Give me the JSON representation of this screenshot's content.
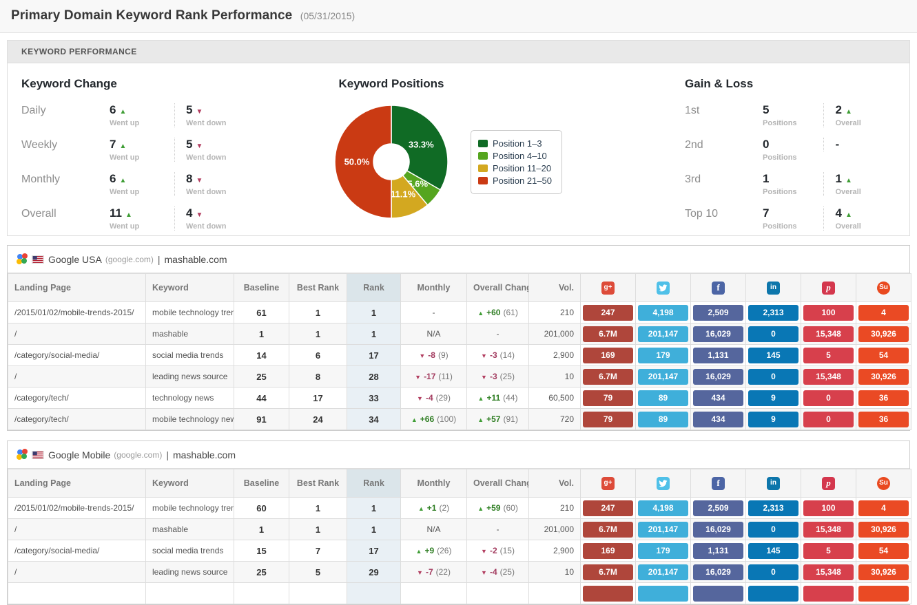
{
  "page": {
    "title": "Primary Domain Keyword Rank Performance",
    "date": "(05/31/2015)"
  },
  "panel": {
    "header": "KEYWORD PERFORMANCE",
    "keyword_change": {
      "title": "Keyword Change",
      "up_label": "Went up",
      "down_label": "Went down",
      "rows": [
        {
          "label": "Daily",
          "up": "6",
          "down": "5"
        },
        {
          "label": "Weekly",
          "up": "7",
          "down": "5"
        },
        {
          "label": "Monthly",
          "up": "6",
          "down": "8"
        },
        {
          "label": "Overall",
          "up": "11",
          "down": "4"
        }
      ]
    },
    "gain_loss": {
      "title": "Gain & Loss",
      "rows": [
        {
          "label": "1st",
          "positions": "5",
          "positions_label": "Positions",
          "overall": "2",
          "overall_arrow": "up",
          "overall_label": "Overall"
        },
        {
          "label": "2nd",
          "positions": "0",
          "positions_label": "Positions",
          "overall": "-",
          "overall_arrow": "",
          "overall_label": ""
        },
        {
          "label": "3rd",
          "positions": "1",
          "positions_label": "Positions",
          "overall": "1",
          "overall_arrow": "up",
          "overall_label": "Overall"
        },
        {
          "label": "Top 10",
          "positions": "7",
          "positions_label": "Positions",
          "overall": "4",
          "overall_arrow": "up",
          "overall_label": "Overall"
        }
      ]
    }
  },
  "chart_data": {
    "type": "pie",
    "donut": true,
    "title": "Keyword Positions",
    "labels": [
      "Position 1–3",
      "Position 4–10",
      "Position 11–20",
      "Position 21–50"
    ],
    "values": [
      33.3,
      5.6,
      11.1,
      50.0
    ],
    "value_labels": [
      "33.3%",
      "5.6%",
      "11.1%",
      "50.0%"
    ],
    "colors": [
      "#106b25",
      "#55a51f",
      "#d3a820",
      "#ca3a13"
    ],
    "legend_position": "right",
    "start_angle_deg": 0,
    "direction": "clockwise"
  },
  "status_colors": {
    "up_green": "#3f9d35",
    "down_red": "#b23e60"
  },
  "social_columns": [
    {
      "name": "google-plus",
      "glyph": "g+",
      "icon_bg": "#dd4b39",
      "badge_color": "#af463b"
    },
    {
      "name": "twitter",
      "glyph": "bird",
      "icon_bg": "#4fc0e8",
      "badge_color": "#3fafda"
    },
    {
      "name": "facebook",
      "glyph": "f",
      "icon_bg": "#4c65a5",
      "badge_color": "#55669d"
    },
    {
      "name": "linkedin",
      "glyph": "in",
      "icon_bg": "#0d76ab",
      "badge_color": "#0977b5"
    },
    {
      "name": "pinterest",
      "glyph": "p",
      "icon_bg": "#d4374d",
      "badge_color": "#d7404c"
    },
    {
      "name": "stumbleupon",
      "glyph": "Su",
      "icon_bg": "#e9491f",
      "badge_color": "#ea4a24"
    }
  ],
  "table_columns": {
    "landing_page": "Landing Page",
    "keyword": "Keyword",
    "baseline": "Baseline",
    "best_rank": "Best Rank",
    "rank": "Rank",
    "monthly": "Monthly",
    "overall_change": "Overall Change",
    "vol": "Vol."
  },
  "tables": [
    {
      "engine": "Google USA",
      "domain": "(google.com)",
      "separator": "|",
      "site": "mashable.com",
      "icon": "google-icon",
      "rows": [
        {
          "landing_page": "/2015/01/02/mobile-trends-2015/",
          "keyword": "mobile technology trends",
          "baseline": "61",
          "best_rank": "1",
          "rank": "1",
          "monthly": {
            "dir": "",
            "text": "-"
          },
          "overall": {
            "dir": "up",
            "text": "+60",
            "paren": "(61)"
          },
          "vol": "210",
          "social": [
            "247",
            "4,198",
            "2,509",
            "2,313",
            "100",
            "4"
          ]
        },
        {
          "landing_page": "/",
          "keyword": "mashable",
          "baseline": "1",
          "best_rank": "1",
          "rank": "1",
          "monthly": {
            "dir": "",
            "text": "N/A"
          },
          "overall": {
            "dir": "",
            "text": "-"
          },
          "vol": "201,000",
          "social": [
            "6.7M",
            "201,147",
            "16,029",
            "0",
            "15,348",
            "30,926"
          ]
        },
        {
          "landing_page": "/category/social-media/",
          "keyword": "social media trends",
          "baseline": "14",
          "best_rank": "6",
          "rank": "17",
          "monthly": {
            "dir": "down",
            "text": "-8",
            "paren": "(9)"
          },
          "overall": {
            "dir": "down",
            "text": "-3",
            "paren": "(14)"
          },
          "vol": "2,900",
          "social": [
            "169",
            "179",
            "1,131",
            "145",
            "5",
            "54"
          ]
        },
        {
          "landing_page": "/",
          "keyword": "leading news source",
          "baseline": "25",
          "best_rank": "8",
          "rank": "28",
          "monthly": {
            "dir": "down",
            "text": "-17",
            "paren": "(11)"
          },
          "overall": {
            "dir": "down",
            "text": "-3",
            "paren": "(25)"
          },
          "vol": "10",
          "social": [
            "6.7M",
            "201,147",
            "16,029",
            "0",
            "15,348",
            "30,926"
          ]
        },
        {
          "landing_page": "/category/tech/",
          "keyword": "technology news",
          "baseline": "44",
          "best_rank": "17",
          "rank": "33",
          "monthly": {
            "dir": "down",
            "text": "-4",
            "paren": "(29)"
          },
          "overall": {
            "dir": "up",
            "text": "+11",
            "paren": "(44)"
          },
          "vol": "60,500",
          "social": [
            "79",
            "89",
            "434",
            "9",
            "0",
            "36"
          ]
        },
        {
          "landing_page": "/category/tech/",
          "keyword": "mobile technology news",
          "baseline": "91",
          "best_rank": "24",
          "rank": "34",
          "monthly": {
            "dir": "up",
            "text": "+66",
            "paren": "(100)"
          },
          "overall": {
            "dir": "up",
            "text": "+57",
            "paren": "(91)"
          },
          "vol": "720",
          "social": [
            "79",
            "89",
            "434",
            "9",
            "0",
            "36"
          ]
        }
      ]
    },
    {
      "engine": "Google Mobile",
      "domain": "(google.com)",
      "separator": "|",
      "site": "mashable.com",
      "icon": "google-mobile-icon",
      "rows": [
        {
          "landing_page": "/2015/01/02/mobile-trends-2015/",
          "keyword": "mobile technology trends",
          "baseline": "60",
          "best_rank": "1",
          "rank": "1",
          "monthly": {
            "dir": "up",
            "text": "+1",
            "paren": "(2)"
          },
          "overall": {
            "dir": "up",
            "text": "+59",
            "paren": "(60)"
          },
          "vol": "210",
          "social": [
            "247",
            "4,198",
            "2,509",
            "2,313",
            "100",
            "4"
          ]
        },
        {
          "landing_page": "/",
          "keyword": "mashable",
          "baseline": "1",
          "best_rank": "1",
          "rank": "1",
          "monthly": {
            "dir": "",
            "text": "N/A"
          },
          "overall": {
            "dir": "",
            "text": "-"
          },
          "vol": "201,000",
          "social": [
            "6.7M",
            "201,147",
            "16,029",
            "0",
            "15,348",
            "30,926"
          ]
        },
        {
          "landing_page": "/category/social-media/",
          "keyword": "social media trends",
          "baseline": "15",
          "best_rank": "7",
          "rank": "17",
          "monthly": {
            "dir": "up",
            "text": "+9",
            "paren": "(26)"
          },
          "overall": {
            "dir": "down",
            "text": "-2",
            "paren": "(15)"
          },
          "vol": "2,900",
          "social": [
            "169",
            "179",
            "1,131",
            "145",
            "5",
            "54"
          ]
        },
        {
          "landing_page": "/",
          "keyword": "leading news source",
          "baseline": "25",
          "best_rank": "5",
          "rank": "29",
          "monthly": {
            "dir": "down",
            "text": "-7",
            "paren": "(22)"
          },
          "overall": {
            "dir": "down",
            "text": "-4",
            "paren": "(25)"
          },
          "vol": "10",
          "social": [
            "6.7M",
            "201,147",
            "16,029",
            "0",
            "15,348",
            "30,926"
          ]
        },
        {
          "partial": true,
          "landing_page": "",
          "keyword": "",
          "baseline": "",
          "best_rank": "",
          "rank": "",
          "monthly": {
            "dir": "",
            "text": ""
          },
          "overall": {
            "dir": "",
            "text": ""
          },
          "vol": "",
          "social": [
            "",
            "",
            "",
            "",
            "",
            ""
          ]
        }
      ]
    }
  ]
}
